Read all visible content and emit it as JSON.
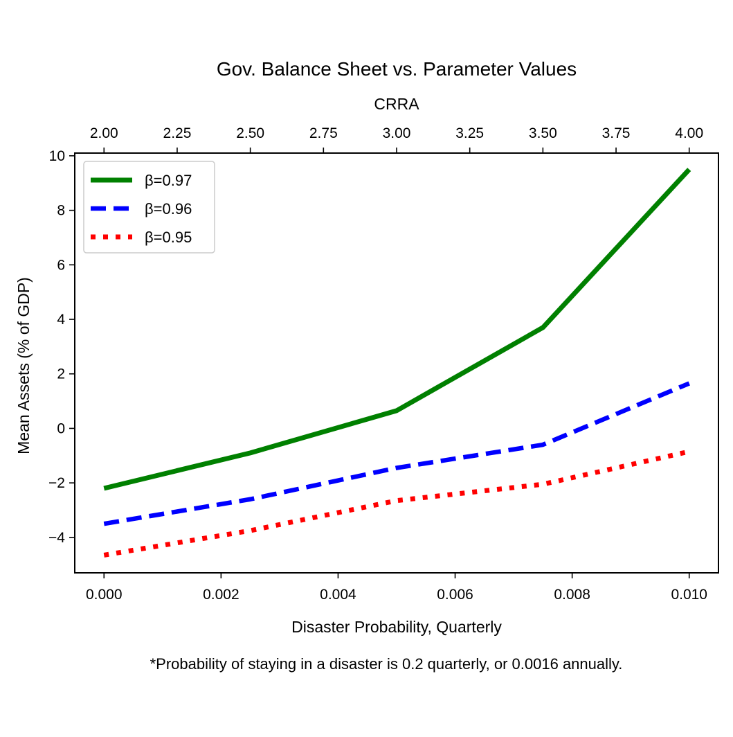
{
  "chart_data": {
    "type": "line",
    "title": "Gov. Balance Sheet vs. Parameter Values",
    "xlabel": "Disaster Probability, Quarterly",
    "ylabel": "Mean Assets (% of GDP)",
    "top_xlabel": "CRRA",
    "footnote": "*Probability of staying in a disaster is 0.2 quarterly, or 0.0016 annually.",
    "xlim": [
      -0.0005,
      0.0105
    ],
    "ylim": [
      -5.3,
      10.1
    ],
    "x": [
      0.0,
      0.0025,
      0.005,
      0.0075,
      0.01
    ],
    "x_ticks": [
      0.0,
      0.002,
      0.004,
      0.006,
      0.008,
      0.01
    ],
    "x_tick_labels": [
      "0.000",
      "0.002",
      "0.004",
      "0.006",
      "0.008",
      "0.010"
    ],
    "y_ticks": [
      -4,
      -2,
      0,
      2,
      4,
      6,
      8,
      10
    ],
    "y_tick_labels": [
      "−4",
      "−2",
      "0",
      "2",
      "4",
      "6",
      "8",
      "10"
    ],
    "top_x_ticks": [
      2.0,
      2.25,
      2.5,
      2.75,
      3.0,
      3.25,
      3.5,
      3.75,
      4.0
    ],
    "top_x_tick_labels": [
      "2.00",
      "2.25",
      "2.50",
      "2.75",
      "3.00",
      "3.25",
      "3.50",
      "3.75",
      "4.00"
    ],
    "top_xlim": [
      2.0,
      4.0
    ],
    "grid": false,
    "legend_position": "top-left",
    "series": [
      {
        "name": "β=0.97",
        "values": [
          -2.2,
          -0.9,
          0.65,
          3.7,
          9.5
        ],
        "color": "#008000",
        "style": "solid"
      },
      {
        "name": "β=0.96",
        "values": [
          -3.5,
          -2.6,
          -1.45,
          -0.6,
          1.65
        ],
        "color": "#0000ff",
        "style": "dashed"
      },
      {
        "name": "β=0.95",
        "values": [
          -4.65,
          -3.75,
          -2.65,
          -2.05,
          -0.85
        ],
        "color": "#ff0000",
        "style": "dotted"
      }
    ]
  }
}
